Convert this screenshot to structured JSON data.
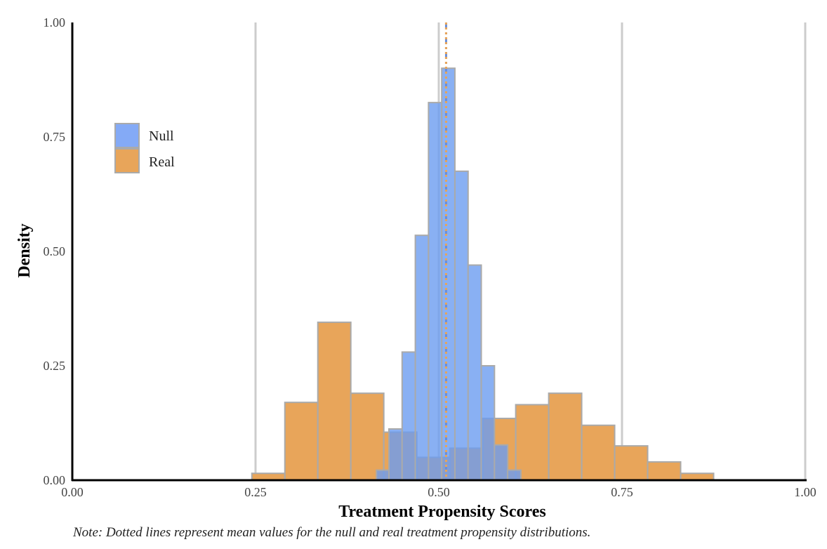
{
  "chart_data": {
    "type": "histogram",
    "title": "",
    "xlabel": "Treatment Propensity Scores",
    "ylabel": "Density",
    "xlim": [
      0,
      1
    ],
    "ylim": [
      0,
      1
    ],
    "x_ticks": [
      "0.00",
      "0.25",
      "0.50",
      "0.75",
      "1.00"
    ],
    "y_ticks": [
      "0.00",
      "0.25",
      "0.50",
      "0.75",
      "1.00"
    ],
    "x_tick_values": [
      0,
      0.25,
      0.5,
      0.75,
      1.0
    ],
    "y_tick_values": [
      0,
      0.25,
      0.5,
      0.75,
      1.0
    ],
    "grid": "vertical only",
    "legend_position": "top-left",
    "series": [
      {
        "name": "Real",
        "color": "#E8A55A",
        "bins": [
          {
            "x0": 0.245,
            "x1": 0.29,
            "density": 0.015
          },
          {
            "x0": 0.29,
            "x1": 0.335,
            "density": 0.17
          },
          {
            "x0": 0.335,
            "x1": 0.38,
            "density": 0.345
          },
          {
            "x0": 0.38,
            "x1": 0.425,
            "density": 0.19
          },
          {
            "x0": 0.425,
            "x1": 0.47,
            "density": 0.105
          },
          {
            "x0": 0.47,
            "x1": 0.515,
            "density": 0.05
          },
          {
            "x0": 0.515,
            "x1": 0.56,
            "density": 0.07
          },
          {
            "x0": 0.56,
            "x1": 0.605,
            "density": 0.135
          },
          {
            "x0": 0.605,
            "x1": 0.65,
            "density": 0.165
          },
          {
            "x0": 0.65,
            "x1": 0.695,
            "density": 0.19
          },
          {
            "x0": 0.695,
            "x1": 0.74,
            "density": 0.12
          },
          {
            "x0": 0.74,
            "x1": 0.785,
            "density": 0.075
          },
          {
            "x0": 0.785,
            "x1": 0.83,
            "density": 0.04
          },
          {
            "x0": 0.83,
            "x1": 0.875,
            "density": 0.015
          }
        ]
      },
      {
        "name": "Null",
        "color": "#6B9CF0",
        "bins": [
          {
            "x0": 0.415,
            "x1": 0.432,
            "density": 0.022
          },
          {
            "x0": 0.432,
            "x1": 0.45,
            "density": 0.112
          },
          {
            "x0": 0.45,
            "x1": 0.468,
            "density": 0.28
          },
          {
            "x0": 0.468,
            "x1": 0.486,
            "density": 0.535
          },
          {
            "x0": 0.486,
            "x1": 0.504,
            "density": 0.825
          },
          {
            "x0": 0.504,
            "x1": 0.522,
            "density": 0.9
          },
          {
            "x0": 0.522,
            "x1": 0.54,
            "density": 0.675
          },
          {
            "x0": 0.54,
            "x1": 0.558,
            "density": 0.47
          },
          {
            "x0": 0.558,
            "x1": 0.576,
            "density": 0.25
          },
          {
            "x0": 0.576,
            "x1": 0.594,
            "density": 0.077
          },
          {
            "x0": 0.594,
            "x1": 0.612,
            "density": 0.022
          }
        ]
      }
    ],
    "mean_lines": [
      {
        "series": "Null",
        "x": 0.51,
        "color": "#6B8FD8",
        "style": "dash-dot"
      },
      {
        "series": "Real",
        "x": 0.51,
        "color": "#E8A55A",
        "style": "dotted"
      }
    ]
  },
  "legend": [
    {
      "label": "Null",
      "color": "#84AAF6"
    },
    {
      "label": "Real",
      "color": "#E8A55A"
    }
  ],
  "note": "Note: Dotted lines represent mean values for the null and real treatment propensity distributions."
}
